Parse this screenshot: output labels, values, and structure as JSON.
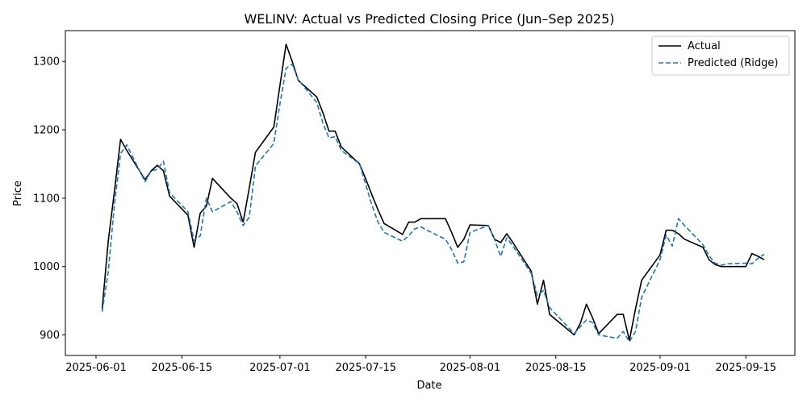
{
  "chart_data": {
    "type": "line",
    "title": "WELINV: Actual vs Predicted Closing Price (Jun–Sep 2025)",
    "xlabel": "Date",
    "ylabel": "Price",
    "x_tick_labels": [
      "2025-06-01",
      "2025-06-15",
      "2025-07-01",
      "2025-07-15",
      "2025-08-01",
      "2025-08-15",
      "2025-09-01",
      "2025-09-15"
    ],
    "y_ticks": [
      900,
      1000,
      1100,
      1200,
      1300
    ],
    "xlim": [
      "2025-05-27",
      "2025-09-23"
    ],
    "ylim": [
      870,
      1345
    ],
    "grid": false,
    "legend_position": "top-right",
    "colors": {
      "actual": "#000000",
      "predicted": "#1f77b4"
    },
    "dates": [
      "2025-06-02",
      "2025-06-03",
      "2025-06-04",
      "2025-06-05",
      "2025-06-06",
      "2025-06-09",
      "2025-06-10",
      "2025-06-11",
      "2025-06-12",
      "2025-06-13",
      "2025-06-16",
      "2025-06-17",
      "2025-06-18",
      "2025-06-19",
      "2025-06-20",
      "2025-06-23",
      "2025-06-24",
      "2025-06-25",
      "2025-06-26",
      "2025-06-27",
      "2025-06-30",
      "2025-07-01",
      "2025-07-02",
      "2025-07-03",
      "2025-07-04",
      "2025-07-07",
      "2025-07-08",
      "2025-07-09",
      "2025-07-10",
      "2025-07-11",
      "2025-07-14",
      "2025-07-15",
      "2025-07-16",
      "2025-07-17",
      "2025-07-18",
      "2025-07-21",
      "2025-07-22",
      "2025-07-23",
      "2025-07-24",
      "2025-07-25",
      "2025-07-28",
      "2025-07-29",
      "2025-07-30",
      "2025-07-31",
      "2025-08-01",
      "2025-08-04",
      "2025-08-05",
      "2025-08-06",
      "2025-08-07",
      "2025-08-08",
      "2025-08-11",
      "2025-08-12",
      "2025-08-13",
      "2025-08-14",
      "2025-08-18",
      "2025-08-19",
      "2025-08-20",
      "2025-08-21",
      "2025-08-22",
      "2025-08-25",
      "2025-08-26",
      "2025-08-27",
      "2025-08-28",
      "2025-08-29",
      "2025-09-01",
      "2025-09-02",
      "2025-09-03",
      "2025-09-04",
      "2025-09-05",
      "2025-09-08",
      "2025-09-09",
      "2025-09-10",
      "2025-09-11",
      "2025-09-12",
      "2025-09-15",
      "2025-09-16",
      "2025-09-17",
      "2025-09-18"
    ],
    "series": [
      {
        "name": "Actual",
        "style": "solid",
        "values": [
          938,
          1038,
          1110,
          1186,
          1170,
          1127,
          1140,
          1148,
          1140,
          1103,
          1075,
          1028,
          1078,
          1088,
          1129,
          1100,
          1092,
          1065,
          1115,
          1167,
          1204,
          1265,
          1325,
          1300,
          1272,
          1248,
          1225,
          1198,
          1198,
          1175,
          1150,
          1128,
          1105,
          1083,
          1063,
          1047,
          1065,
          1065,
          1070,
          1070,
          1070,
          1050,
          1028,
          1040,
          1061,
          1060,
          1040,
          1035,
          1048,
          1035,
          993,
          945,
          980,
          930,
          900,
          917,
          945,
          925,
          902,
          930,
          930,
          892,
          938,
          980,
          1017,
          1053,
          1053,
          1048,
          1040,
          1028,
          1010,
          1003,
          1000,
          1000,
          1000,
          1019,
          1015,
          1010
        ]
      },
      {
        "name": "Predicted (Ridge)",
        "style": "dashed",
        "values": [
          934,
          993,
          1090,
          1165,
          1178,
          1124,
          1140,
          1142,
          1154,
          1108,
          1080,
          1038,
          1045,
          1100,
          1080,
          1095,
          1080,
          1060,
          1072,
          1147,
          1180,
          1238,
          1290,
          1296,
          1273,
          1240,
          1210,
          1188,
          1190,
          1170,
          1150,
          1120,
          1090,
          1065,
          1050,
          1037,
          1045,
          1055,
          1058,
          1053,
          1040,
          1025,
          1005,
          1007,
          1050,
          1060,
          1040,
          1015,
          1042,
          1030,
          990,
          958,
          965,
          940,
          902,
          912,
          922,
          918,
          900,
          895,
          905,
          890,
          905,
          955,
          1010,
          1046,
          1030,
          1070,
          1060,
          1032,
          1016,
          1005,
          1002,
          1004,
          1005,
          1004,
          1012,
          1018
        ]
      }
    ]
  }
}
